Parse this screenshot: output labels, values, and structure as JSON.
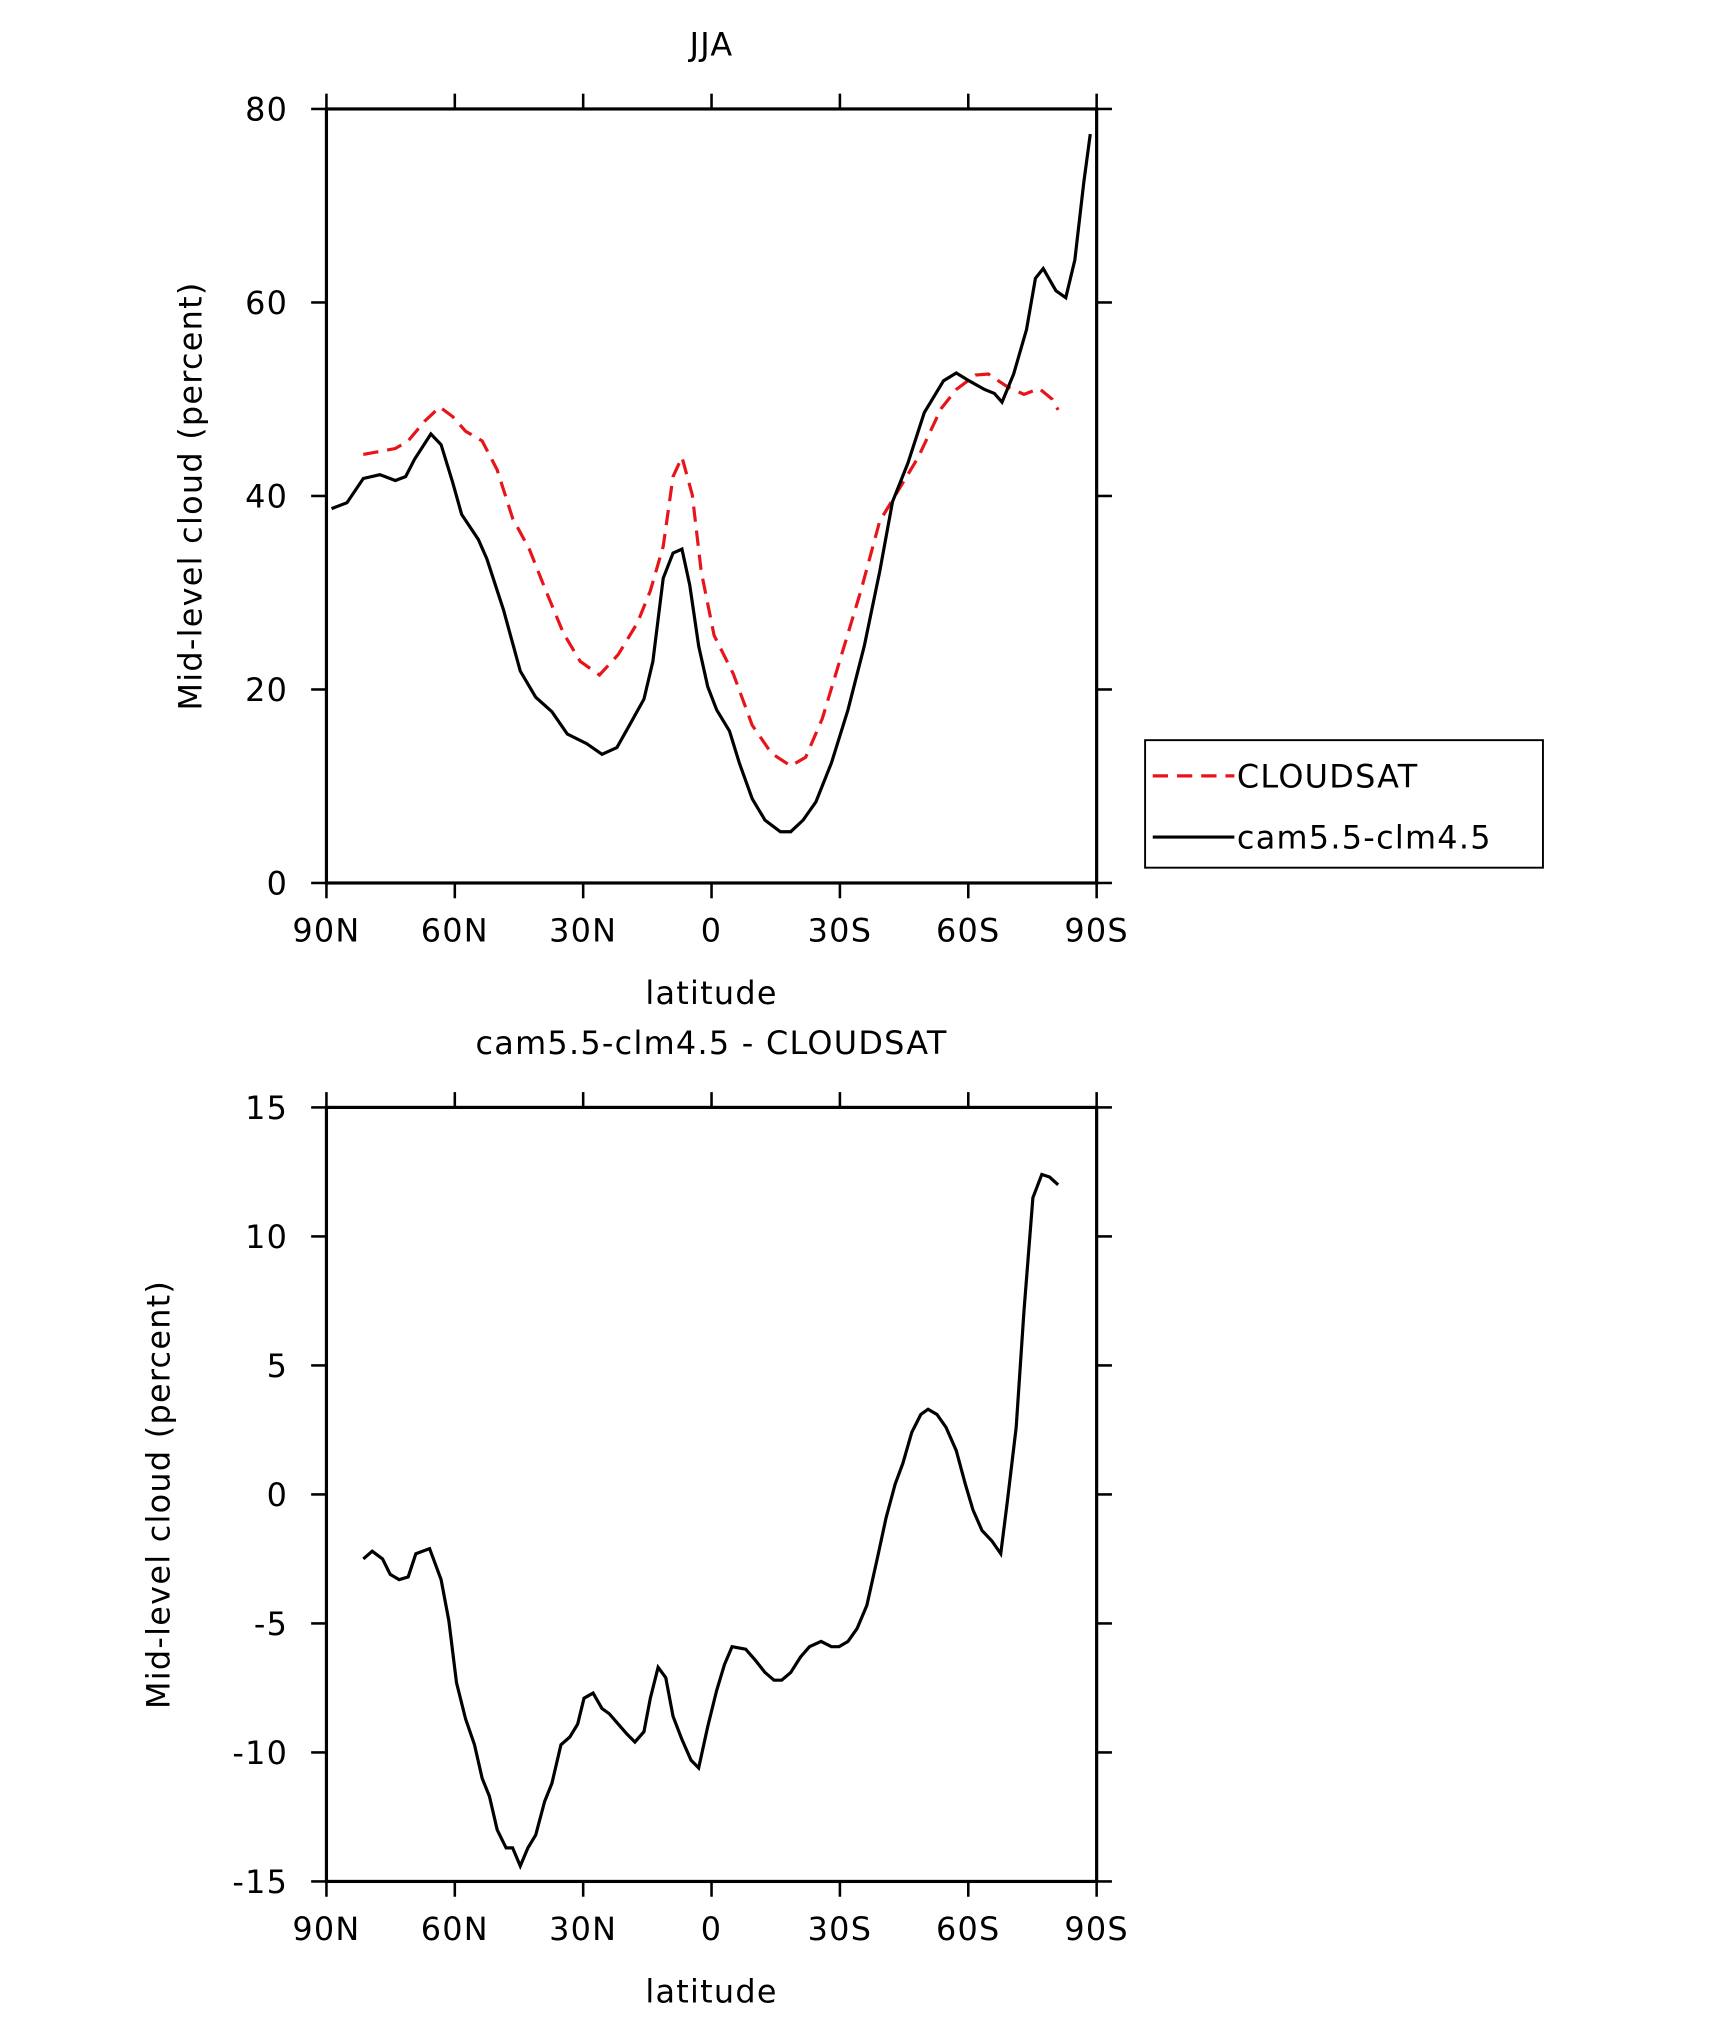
{
  "chart_data": [
    {
      "type": "line",
      "title": "JJA",
      "xlabel": "latitude",
      "ylabel": "Mid-level cloud (percent)",
      "xlim": [
        90,
        -90
      ],
      "xticks": [
        {
          "value": 90,
          "label": "90N"
        },
        {
          "value": 60,
          "label": "60N"
        },
        {
          "value": 30,
          "label": "30N"
        },
        0,
        {
          "value": -30,
          "label": "30S"
        },
        {
          "value": -60,
          "label": "60S"
        },
        {
          "value": -90,
          "label": "90S"
        }
      ],
      "ylim": [
        0,
        80
      ],
      "yticks": [
        0,
        20,
        40,
        60,
        80
      ],
      "series": [
        {
          "name": "CLOUDSAT",
          "color": "#e8141a",
          "line_style": "dashed",
          "x": [
            81.4,
            73.9,
            70.9,
            67.1,
            63.5,
            60.5,
            57.5,
            53.6,
            50.1,
            46.5,
            42.6,
            38.7,
            34.6,
            30.7,
            26.2,
            21.8,
            17.3,
            14.3,
            11.3,
            9.0,
            6.9,
            4.5,
            2.4,
            -0.6,
            -5.1,
            -9.5,
            -14.0,
            -18.5,
            -22.0,
            -25.9,
            -30.4,
            -34.9,
            -39.3,
            -43.8,
            -48.3,
            -53.6,
            -57.2,
            -61.7,
            -64.7,
            -69.1,
            -73.0,
            -76.6,
            -79.6,
            -81.0
          ],
          "values": [
            44.3,
            44.9,
            45.7,
            47.7,
            49.2,
            48.2,
            46.7,
            45.7,
            42.7,
            37.7,
            34.5,
            30.2,
            25.8,
            22.9,
            21.5,
            23.6,
            26.9,
            30.2,
            34.8,
            42.0,
            44.0,
            40.1,
            32.2,
            25.6,
            21.6,
            16.3,
            13.4,
            12.1,
            13.0,
            17.0,
            23.6,
            30.2,
            37.4,
            40.7,
            44.0,
            49.0,
            51.0,
            52.5,
            52.6,
            51.3,
            50.5,
            51.1,
            50.0,
            48.9
          ]
        },
        {
          "name": "cam5.5-clm4.5",
          "color": "#000000",
          "line_style": "solid",
          "x": [
            88.8,
            85.2,
            81.4,
            77.5,
            73.9,
            71.5,
            69.4,
            65.6,
            63.2,
            60.5,
            58.4,
            54.5,
            52.5,
            48.6,
            44.7,
            41.1,
            37.3,
            33.7,
            29.2,
            25.6,
            22.1,
            18.8,
            15.8,
            13.7,
            11.3,
            9.0,
            6.9,
            5.1,
            3.0,
            0.9,
            -1.2,
            -4.2,
            -6.5,
            -9.5,
            -12.5,
            -16.1,
            -18.5,
            -21.4,
            -24.4,
            -28.0,
            -31.9,
            -35.7,
            -39.3,
            -42.3,
            -45.9,
            -49.7,
            -54.2,
            -57.2,
            -60.2,
            -63.8,
            -66.1,
            -67.9,
            -70.6,
            -73.6,
            -75.7,
            -77.5,
            -80.5,
            -82.8,
            -84.9,
            -87.0,
            -88.5
          ],
          "values": [
            38.7,
            39.3,
            41.8,
            42.2,
            41.6,
            42.0,
            43.8,
            46.4,
            45.3,
            41.4,
            38.1,
            35.5,
            33.5,
            28.2,
            21.9,
            19.2,
            17.7,
            15.4,
            14.4,
            13.3,
            14.0,
            16.6,
            19.0,
            22.9,
            31.5,
            34.1,
            34.5,
            30.8,
            24.5,
            20.3,
            17.9,
            15.7,
            12.4,
            8.7,
            6.5,
            5.3,
            5.3,
            6.5,
            8.4,
            12.4,
            17.9,
            24.5,
            32.2,
            39.4,
            43.4,
            48.6,
            51.9,
            52.7,
            51.9,
            51.0,
            50.6,
            49.7,
            52.6,
            57.2,
            62.5,
            63.5,
            61.2,
            60.5,
            64.4,
            72.4,
            77.4
          ]
        }
      ]
    },
    {
      "type": "line",
      "title": "cam5.5-clm4.5 - CLOUDSAT",
      "xlabel": "latitude",
      "ylabel": "Mid-level cloud (percent)",
      "xlim": [
        90,
        -90
      ],
      "xticks": [
        {
          "value": 90,
          "label": "90N"
        },
        {
          "value": 60,
          "label": "60N"
        },
        {
          "value": 30,
          "label": "30N"
        },
        0,
        {
          "value": -30,
          "label": "30S"
        },
        {
          "value": -60,
          "label": "60S"
        },
        {
          "value": -90,
          "label": "90S"
        }
      ],
      "ylim": [
        -15,
        15
      ],
      "yticks": [
        -15,
        -10,
        -5,
        0,
        5,
        10,
        15
      ],
      "series": [
        {
          "color": "#000000",
          "line_style": "solid",
          "x": [
            81.4,
            79.3,
            76.9,
            75.1,
            73.0,
            70.9,
            69.1,
            65.9,
            63.2,
            61.4,
            59.6,
            57.5,
            55.4,
            53.6,
            51.9,
            50.1,
            48.0,
            46.5,
            44.7,
            42.9,
            41.1,
            39.0,
            37.3,
            35.2,
            33.1,
            31.3,
            29.8,
            27.7,
            25.6,
            23.9,
            21.8,
            19.7,
            17.9,
            15.8,
            14.3,
            12.5,
            10.7,
            9.0,
            6.9,
            4.8,
            3.0,
            0.9,
            -1.2,
            -3.0,
            -4.8,
            -8.0,
            -10.1,
            -12.5,
            -14.6,
            -16.4,
            -18.5,
            -20.8,
            -22.9,
            -25.6,
            -28.0,
            -29.8,
            -31.9,
            -34.0,
            -36.3,
            -38.7,
            -40.8,
            -42.9,
            -44.7,
            -46.8,
            -48.9,
            -50.6,
            -52.7,
            -54.8,
            -57.2,
            -59.3,
            -61.1,
            -63.2,
            -65.5,
            -67.6,
            -69.1,
            -71.2,
            -73.0,
            -75.1,
            -77.2,
            -79.0,
            -81.0
          ],
          "values": [
            -2.5,
            -2.2,
            -2.5,
            -3.1,
            -3.3,
            -3.2,
            -2.3,
            -2.1,
            -3.3,
            -4.9,
            -7.3,
            -8.7,
            -9.7,
            -11.0,
            -11.7,
            -13.0,
            -13.7,
            -13.7,
            -14.4,
            -13.7,
            -13.2,
            -11.9,
            -11.2,
            -9.7,
            -9.4,
            -8.9,
            -7.9,
            -7.7,
            -8.3,
            -8.5,
            -8.9,
            -9.3,
            -9.6,
            -9.2,
            -7.9,
            -6.7,
            -7.1,
            -8.6,
            -9.5,
            -10.3,
            -10.6,
            -9.0,
            -7.6,
            -6.6,
            -5.9,
            -6.0,
            -6.4,
            -6.9,
            -7.2,
            -7.2,
            -6.9,
            -6.3,
            -5.9,
            -5.7,
            -5.9,
            -5.9,
            -5.7,
            -5.2,
            -4.3,
            -2.5,
            -0.9,
            0.4,
            1.2,
            2.4,
            3.1,
            3.3,
            3.1,
            2.6,
            1.7,
            0.4,
            -0.6,
            -1.4,
            -1.8,
            -2.3,
            -0.3,
            2.6,
            7.1,
            11.5,
            12.4,
            12.3,
            12.0
          ]
        }
      ]
    }
  ]
}
